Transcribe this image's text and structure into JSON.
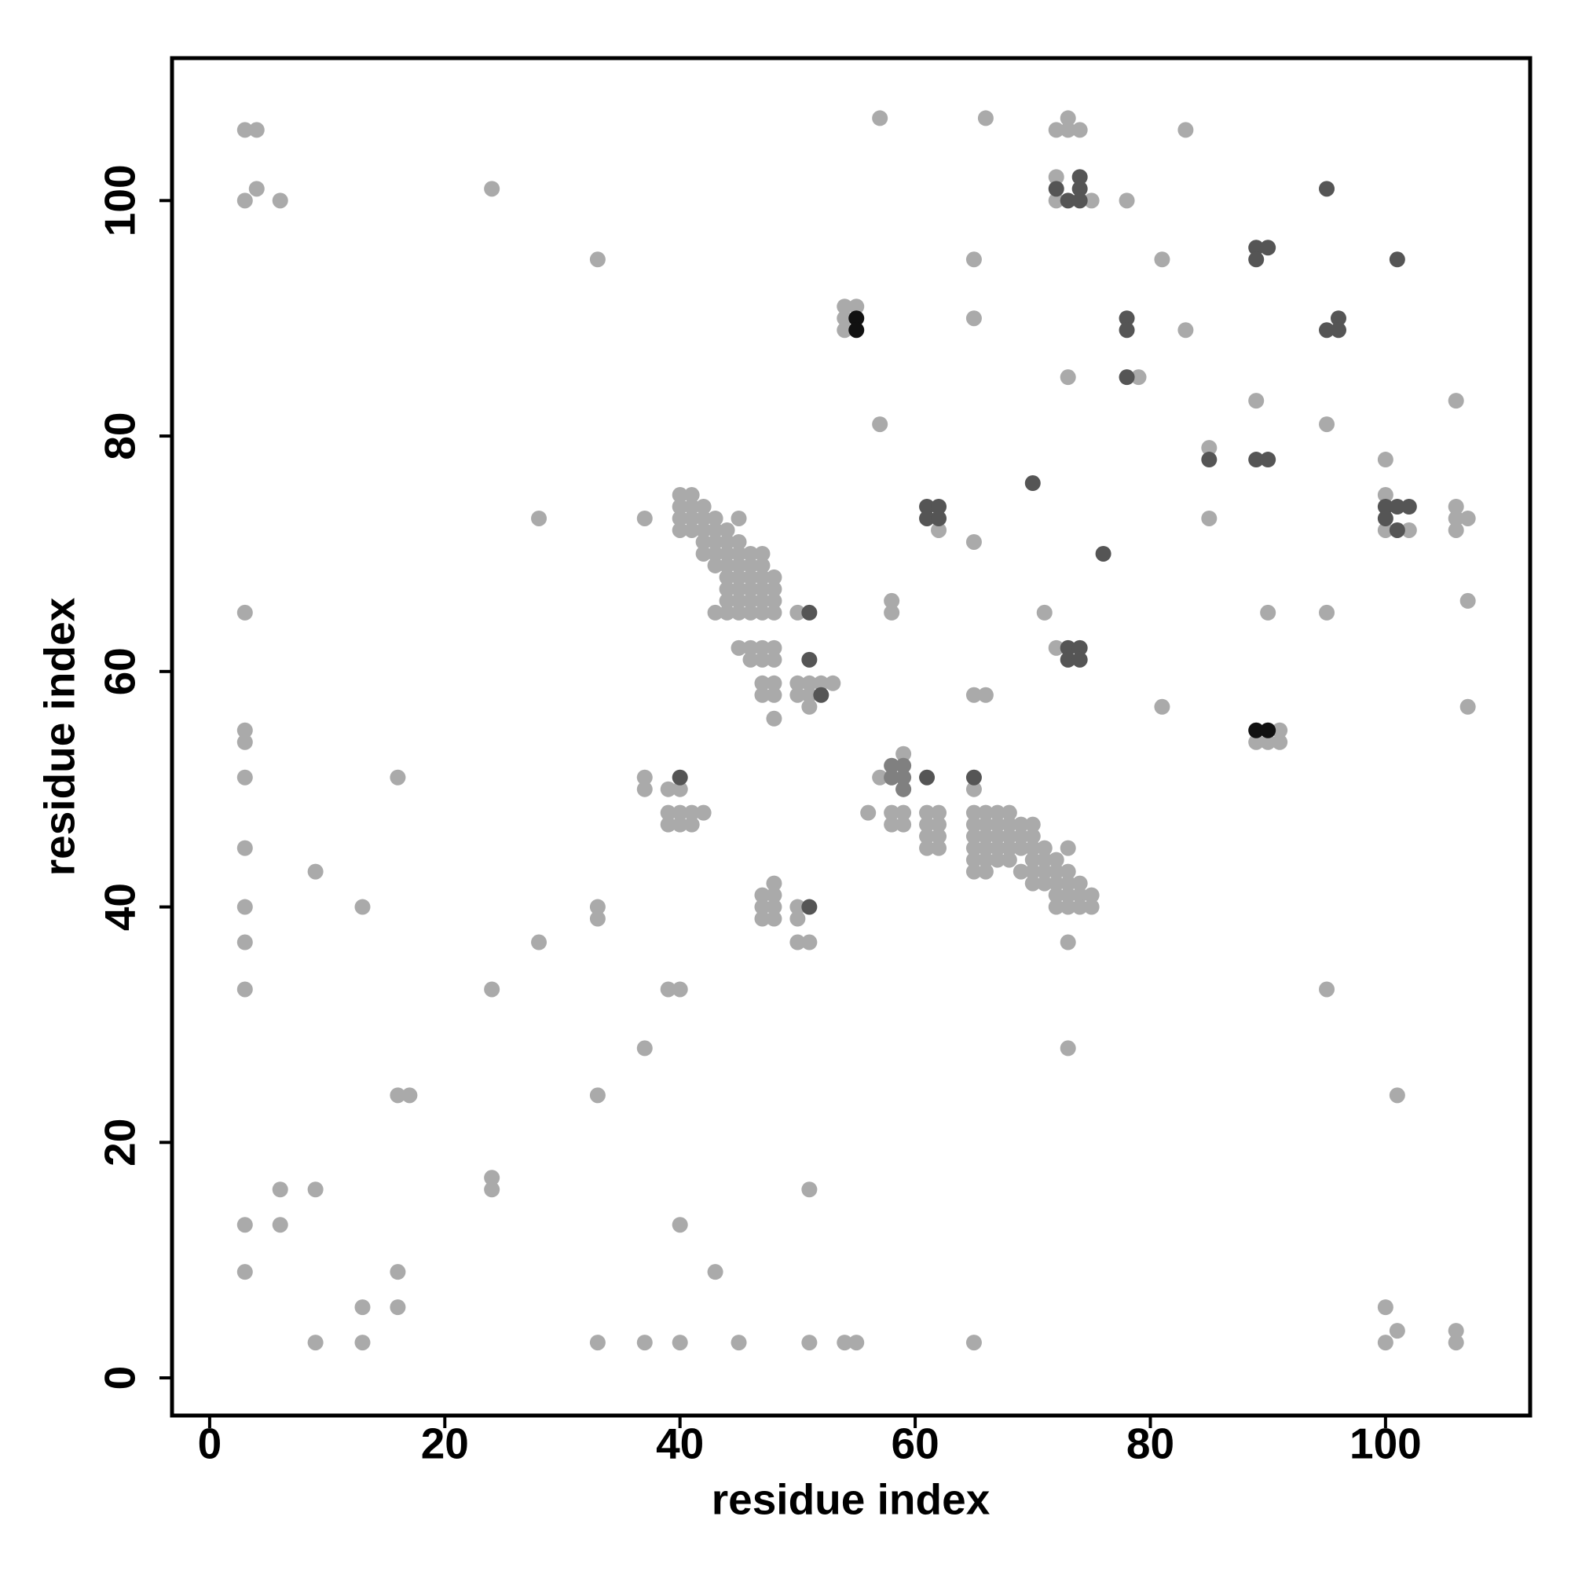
{
  "chart_data": {
    "type": "scatter",
    "xlabel": "residue index",
    "ylabel": "residue index",
    "xlim": [
      -3.2,
      112.3
    ],
    "ylim": [
      -3.2,
      112.1
    ],
    "xticks": [
      0,
      20,
      40,
      60,
      80,
      100
    ],
    "yticks": [
      0,
      20,
      40,
      60,
      80,
      100
    ],
    "series": [
      {
        "color": "#aaaaaa",
        "x": [
          3,
          4,
          4,
          3,
          6,
          24,
          33,
          3,
          3,
          3,
          3,
          3,
          3,
          3,
          3,
          3,
          3,
          9,
          13,
          16,
          16,
          17,
          6,
          9,
          6,
          16,
          13,
          16,
          9,
          13,
          24,
          24,
          24,
          28,
          28,
          33,
          33,
          33,
          33,
          37,
          37,
          37,
          37,
          37,
          39,
          40,
          40,
          40,
          43,
          45,
          51,
          51,
          54,
          55,
          39,
          40,
          39,
          40,
          41,
          42,
          39,
          40,
          41,
          40,
          40,
          40,
          40,
          41,
          41,
          41,
          41,
          42,
          42,
          42,
          42,
          42,
          43,
          43,
          43,
          43,
          43,
          43,
          44,
          44,
          44,
          44,
          44,
          44,
          44,
          44,
          45,
          45,
          45,
          45,
          45,
          45,
          45,
          45,
          45,
          46,
          46,
          46,
          46,
          46,
          46,
          46,
          46,
          47,
          47,
          47,
          47,
          47,
          47,
          47,
          47,
          48,
          48,
          48,
          48,
          48,
          48,
          48,
          48,
          48,
          47,
          47,
          47,
          48,
          48,
          47,
          48,
          47,
          48,
          50,
          50,
          50,
          51,
          51,
          51,
          52,
          53,
          50,
          50,
          50,
          51,
          54,
          55,
          54,
          54,
          57,
          57,
          56,
          57,
          58,
          58,
          59,
          58,
          59,
          59,
          59,
          58,
          58,
          61,
          61,
          61,
          61,
          62,
          62,
          62,
          62,
          62,
          65,
          65,
          65,
          65,
          66,
          65,
          65,
          66,
          65,
          65,
          65,
          65,
          65,
          65,
          66,
          66,
          66,
          66,
          66,
          66,
          67,
          67,
          67,
          67,
          67,
          68,
          68,
          68,
          68,
          68,
          69,
          69,
          69,
          69,
          70,
          70,
          70,
          70,
          70,
          70,
          71,
          71,
          71,
          71,
          72,
          72,
          72,
          72,
          72,
          73,
          73,
          73,
          73,
          73,
          73,
          73,
          74,
          74,
          74,
          75,
          75,
          71,
          72,
          72,
          73,
          73,
          74,
          72,
          72,
          75,
          73,
          78,
          79,
          81,
          81,
          83,
          83,
          85,
          85,
          89,
          89,
          90,
          91,
          91,
          90,
          95,
          95,
          95,
          100,
          100,
          100,
          102,
          100,
          101,
          100,
          101,
          106,
          106,
          106,
          107,
          106,
          107,
          107,
          106,
          106
        ],
        "y": [
          106,
          106,
          101,
          100,
          100,
          101,
          95,
          65,
          55,
          54,
          51,
          45,
          40,
          37,
          33,
          13,
          9,
          43,
          40,
          51,
          24,
          24,
          16,
          16,
          13,
          9,
          6,
          6,
          3,
          3,
          33,
          17,
          16,
          73,
          37,
          40,
          39,
          24,
          3,
          73,
          51,
          50,
          28,
          3,
          33,
          33,
          13,
          3,
          9,
          3,
          16,
          3,
          3,
          3,
          50,
          50,
          48,
          48,
          48,
          48,
          47,
          47,
          47,
          75,
          74,
          73,
          72,
          75,
          74,
          73,
          72,
          74,
          73,
          72,
          71,
          70,
          73,
          72,
          71,
          70,
          69,
          65,
          72,
          71,
          70,
          69,
          68,
          67,
          66,
          65,
          73,
          71,
          70,
          69,
          68,
          67,
          66,
          65,
          62,
          70,
          69,
          68,
          67,
          66,
          65,
          62,
          61,
          70,
          69,
          68,
          67,
          66,
          65,
          62,
          61,
          68,
          67,
          66,
          65,
          62,
          61,
          59,
          58,
          56,
          59,
          58,
          41,
          42,
          41,
          40,
          40,
          39,
          39,
          65,
          59,
          58,
          59,
          58,
          57,
          59,
          59,
          40,
          39,
          37,
          37,
          91,
          91,
          90,
          89,
          107,
          81,
          48,
          51,
          51,
          48,
          48,
          47,
          47,
          53,
          50,
          66,
          65,
          48,
          47,
          46,
          45,
          48,
          47,
          46,
          45,
          72,
          95,
          90,
          71,
          58,
          58,
          50,
          3,
          107,
          48,
          47,
          46,
          45,
          44,
          43,
          48,
          47,
          46,
          45,
          44,
          43,
          48,
          47,
          46,
          45,
          44,
          48,
          47,
          46,
          45,
          44,
          47,
          46,
          45,
          43,
          47,
          46,
          45,
          44,
          43,
          42,
          45,
          44,
          43,
          42,
          44,
          43,
          42,
          41,
          40,
          45,
          43,
          42,
          41,
          40,
          37,
          28,
          42,
          41,
          40,
          41,
          40,
          65,
          62,
          106,
          107,
          106,
          106,
          102,
          100,
          100,
          85,
          100,
          85,
          95,
          57,
          106,
          89,
          79,
          73,
          83,
          54,
          54,
          55,
          54,
          65,
          81,
          65,
          33,
          78,
          75,
          72,
          72,
          6,
          4,
          3,
          24,
          83,
          74,
          73,
          73,
          72,
          66,
          57,
          4,
          3
        ]
      },
      {
        "color": "#808080",
        "x": [
          58,
          59,
          58,
          59,
          59
        ],
        "y": [
          52,
          52,
          51,
          51,
          50
        ]
      },
      {
        "color": "#555555",
        "x": [
          40,
          51,
          51,
          51,
          52,
          61,
          65,
          61,
          62,
          61,
          62,
          70,
          76,
          73,
          74,
          73,
          74,
          72,
          74,
          74,
          73,
          74,
          78,
          78,
          78,
          85,
          89,
          90,
          89,
          89,
          90,
          95,
          101,
          95,
          96,
          96,
          100,
          101,
          102,
          100,
          101
        ],
        "y": [
          51,
          65,
          61,
          40,
          58,
          51,
          51,
          74,
          74,
          73,
          73,
          76,
          70,
          62,
          62,
          61,
          61,
          101,
          102,
          101,
          100,
          100,
          90,
          89,
          85,
          78,
          96,
          96,
          95,
          78,
          78,
          101,
          95,
          89,
          90,
          89,
          74,
          74,
          74,
          73,
          72
        ]
      },
      {
        "color": "#111111",
        "x": [
          55,
          55,
          89,
          90
        ],
        "y": [
          90,
          89,
          55,
          55
        ]
      }
    ]
  }
}
